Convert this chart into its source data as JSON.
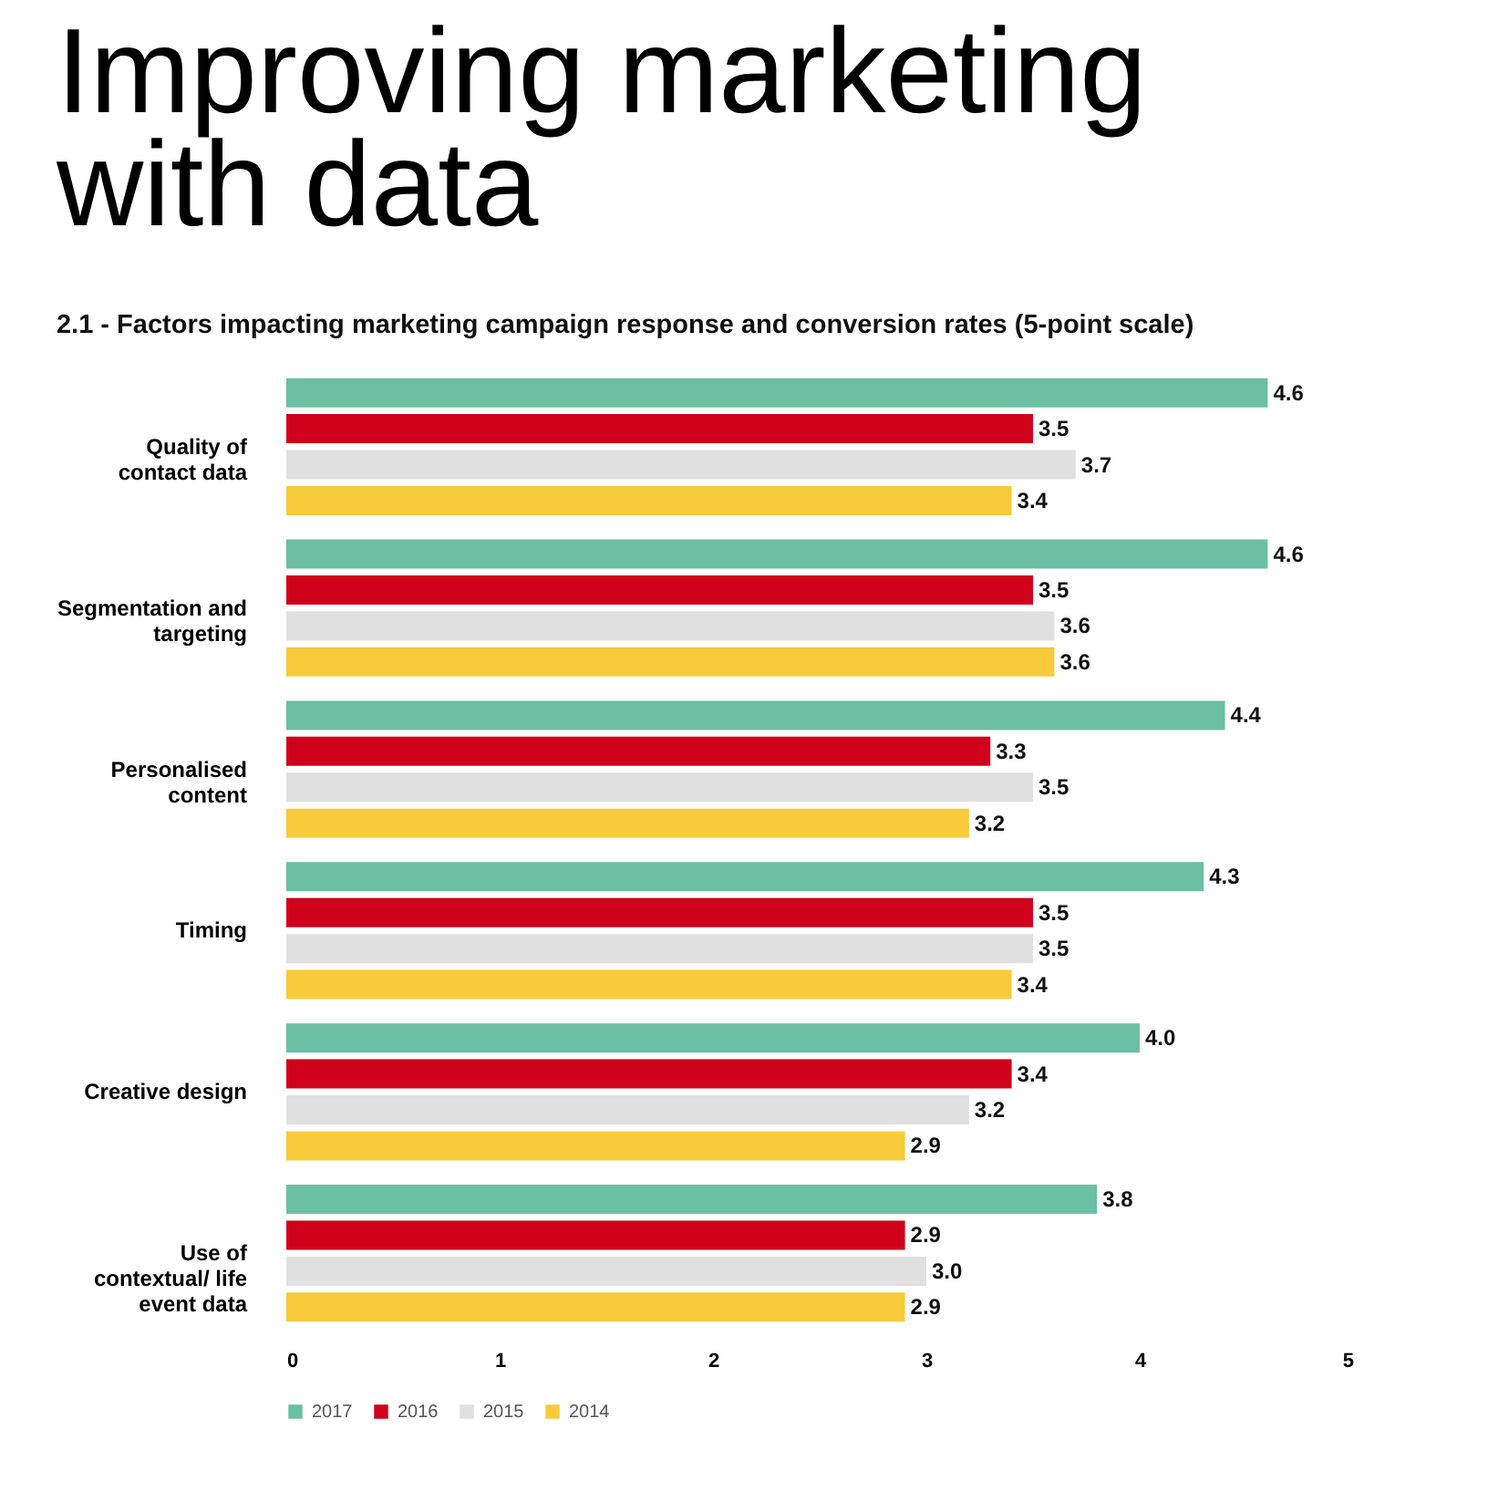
{
  "chart_data": {
    "type": "bar",
    "orientation": "horizontal",
    "title": "Improving marketing with data",
    "subtitle": "2.1 - Factors impacting marketing campaign response and conversion rates (5-point scale)",
    "categories": [
      "Quality of contact data",
      "Segmentation and targeting",
      "Personalised content",
      "Timing",
      "Creative design",
      "Use of contextual/ life event data"
    ],
    "series": [
      {
        "name": "2017",
        "color": "#6cbfa3",
        "values": [
          4.6,
          4.6,
          4.4,
          4.3,
          4.0,
          3.8
        ],
        "value_labels": [
          "4.6",
          "4.6",
          "4.4",
          "4.3",
          "4.0",
          "3.8"
        ]
      },
      {
        "name": "2016",
        "color": "#d0021b",
        "values": [
          3.5,
          3.5,
          3.3,
          3.5,
          3.4,
          2.9
        ],
        "value_labels": [
          "3.5",
          "3.5",
          "3.3",
          "3.5",
          "3.4",
          "2.9"
        ]
      },
      {
        "name": "2015",
        "color": "#e0e0e0",
        "values": [
          3.7,
          3.6,
          3.5,
          3.5,
          3.2,
          3.0
        ],
        "value_labels": [
          "3.7",
          "3.6",
          "3.5",
          "3.5",
          "3.2",
          "3.0"
        ]
      },
      {
        "name": "2014",
        "color": "#f7cb3a",
        "values": [
          3.4,
          3.6,
          3.2,
          3.4,
          2.9,
          2.9
        ],
        "value_labels": [
          "3.4",
          "3.6",
          "3.2",
          "3.4",
          "2.9",
          "2.9"
        ]
      }
    ],
    "xlim": [
      0,
      5
    ],
    "xticks": [
      0,
      1,
      2,
      3,
      4,
      5
    ],
    "grid": false,
    "legend": "bottom"
  }
}
